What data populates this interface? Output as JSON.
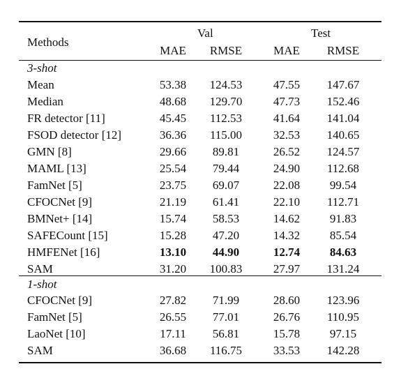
{
  "table": {
    "header": {
      "methods": "Methods",
      "val": "Val",
      "test": "Test",
      "mae": "MAE",
      "rmse": "RMSE"
    },
    "sections": [
      {
        "label": "3-shot",
        "rows": [
          {
            "method": "Mean",
            "val_mae": "53.38",
            "val_rmse": "124.53",
            "test_mae": "47.55",
            "test_rmse": "147.67",
            "bold": false
          },
          {
            "method": "Median",
            "val_mae": "48.68",
            "val_rmse": "129.70",
            "test_mae": "47.73",
            "test_rmse": "152.46",
            "bold": false
          },
          {
            "method": "FR detector [11]",
            "val_mae": "45.45",
            "val_rmse": "112.53",
            "test_mae": "41.64",
            "test_rmse": "141.04",
            "bold": false
          },
          {
            "method": "FSOD detector [12]",
            "val_mae": "36.36",
            "val_rmse": "115.00",
            "test_mae": "32.53",
            "test_rmse": "140.65",
            "bold": false
          },
          {
            "method": "GMN [8]",
            "val_mae": "29.66",
            "val_rmse": "89.81",
            "test_mae": "26.52",
            "test_rmse": "124.57",
            "bold": false
          },
          {
            "method": "MAML [13]",
            "val_mae": "25.54",
            "val_rmse": "79.44",
            "test_mae": "24.90",
            "test_rmse": "112.68",
            "bold": false
          },
          {
            "method": "FamNet [5]",
            "val_mae": "23.75",
            "val_rmse": "69.07",
            "test_mae": "22.08",
            "test_rmse": "99.54",
            "bold": false
          },
          {
            "method": "CFOCNet [9]",
            "val_mae": "21.19",
            "val_rmse": "61.41",
            "test_mae": "22.10",
            "test_rmse": "112.71",
            "bold": false
          },
          {
            "method": "BMNet+ [14]",
            "val_mae": "15.74",
            "val_rmse": "58.53",
            "test_mae": "14.62",
            "test_rmse": "91.83",
            "bold": false
          },
          {
            "method": "SAFECount [15]",
            "val_mae": "15.28",
            "val_rmse": "47.20",
            "test_mae": "14.32",
            "test_rmse": "85.54",
            "bold": false
          },
          {
            "method": "HMFENet [16]",
            "val_mae": "13.10",
            "val_rmse": "44.90",
            "test_mae": "12.74",
            "test_rmse": "84.63",
            "bold": true
          },
          {
            "method": "SAM",
            "val_mae": "31.20",
            "val_rmse": "100.83",
            "test_mae": "27.97",
            "test_rmse": "131.24",
            "bold": false
          }
        ]
      },
      {
        "label": "1-shot",
        "rows": [
          {
            "method": "CFOCNet [9]",
            "val_mae": "27.82",
            "val_rmse": "71.99",
            "test_mae": "28.60",
            "test_rmse": "123.96",
            "bold": false
          },
          {
            "method": "FamNet [5]",
            "val_mae": "26.55",
            "val_rmse": "77.01",
            "test_mae": "26.76",
            "test_rmse": "110.95",
            "bold": false
          },
          {
            "method": "LaoNet [10]",
            "val_mae": "17.11",
            "val_rmse": "56.81",
            "test_mae": "15.78",
            "test_rmse": "97.15",
            "bold": false
          },
          {
            "method": "SAM",
            "val_mae": "36.68",
            "val_rmse": "116.75",
            "test_mae": "33.53",
            "test_rmse": "142.28",
            "bold": false
          }
        ]
      }
    ]
  }
}
